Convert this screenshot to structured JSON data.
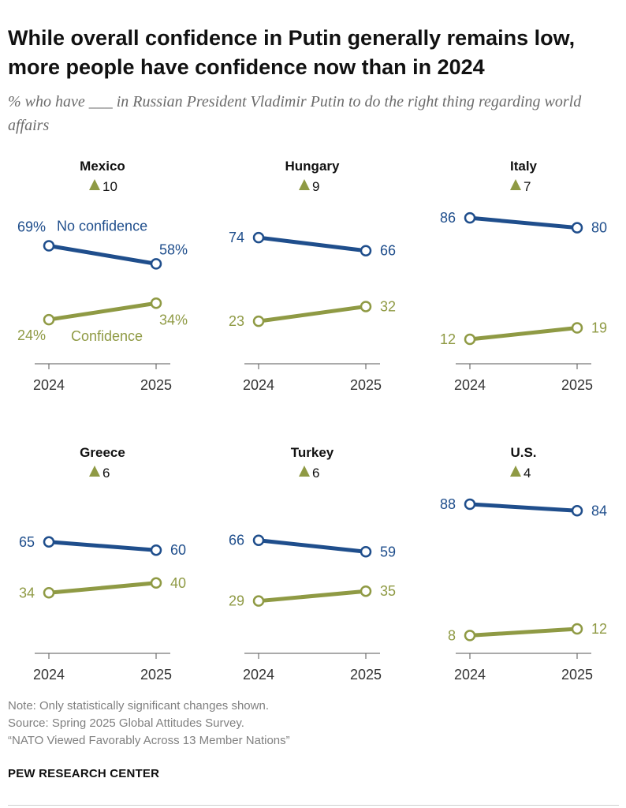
{
  "title": "While overall confidence in Putin generally remains low, more people have confidence now than in 2024",
  "subtitle": "% who have ___ in Russian President Vladimir Putin to do the right thing regarding world affairs",
  "notes": {
    "note": "Note: Only statistically significant changes shown.",
    "source": "Source: Spring 2025 Global Attitudes Survey.",
    "report": "“NATO Viewed Favorably Across 13 Member Nations”"
  },
  "brand": "PEW RESEARCH CENTER",
  "colors": {
    "no_confidence": "#1f4e8c",
    "confidence": "#8f9a44",
    "axis": "#555555"
  },
  "chart_data": {
    "type": "line",
    "x": [
      "2024",
      "2025"
    ],
    "series_labels": {
      "no_confidence": "No confidence",
      "confidence": "Confidence"
    },
    "change_icon": "triangle-up-icon",
    "panels": [
      {
        "country": "Mexico",
        "change_value": "10",
        "percent_signs": true,
        "no_confidence": [
          69,
          58
        ],
        "confidence": [
          24,
          34
        ]
      },
      {
        "country": "Hungary",
        "change_value": "9",
        "percent_signs": false,
        "no_confidence": [
          74,
          66
        ],
        "confidence": [
          23,
          32
        ]
      },
      {
        "country": "Italy",
        "change_value": "7",
        "percent_signs": false,
        "no_confidence": [
          86,
          80
        ],
        "confidence": [
          12,
          19
        ]
      },
      {
        "country": "Greece",
        "change_value": "6",
        "percent_signs": false,
        "no_confidence": [
          65,
          60
        ],
        "confidence": [
          34,
          40
        ]
      },
      {
        "country": "Turkey",
        "change_value": "6",
        "percent_signs": false,
        "no_confidence": [
          66,
          59
        ],
        "confidence": [
          29,
          35
        ]
      },
      {
        "country": "U.S.",
        "change_value": "4",
        "percent_signs": false,
        "no_confidence": [
          88,
          84
        ],
        "confidence": [
          8,
          12
        ]
      }
    ]
  }
}
